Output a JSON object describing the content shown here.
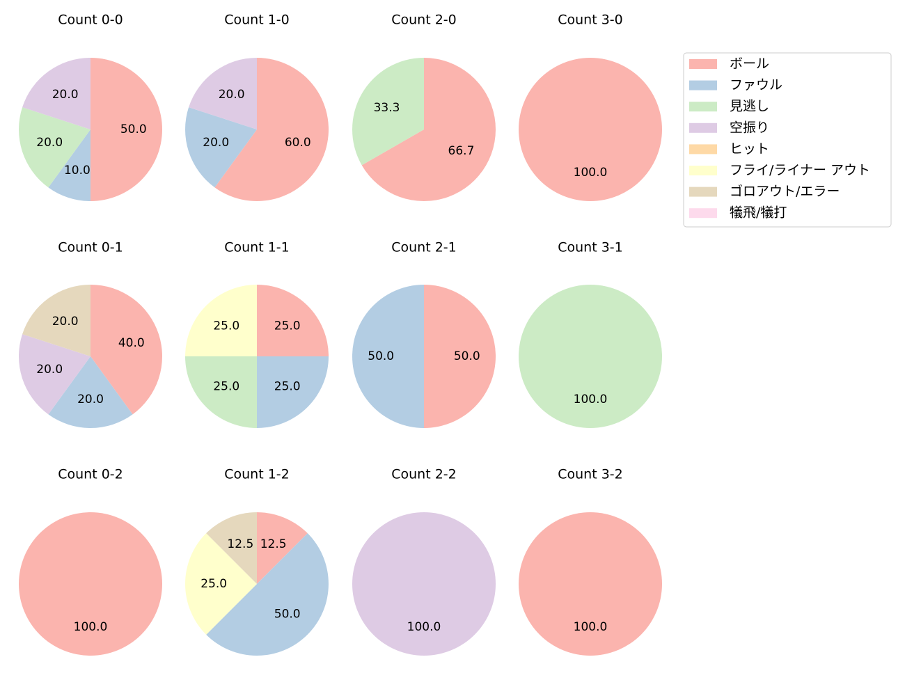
{
  "legend": {
    "entries": [
      {
        "name": "ボール",
        "color": "#fbb4ae"
      },
      {
        "name": "ファウル",
        "color": "#b3cde3"
      },
      {
        "name": "見逃し",
        "color": "#ccebc5"
      },
      {
        "name": "空振り",
        "color": "#decbe4"
      },
      {
        "name": "ヒット",
        "color": "#fed9a6"
      },
      {
        "name": "フライ/ライナー アウト",
        "color": "#ffffcc"
      },
      {
        "name": "ゴロアウト/エラー",
        "color": "#e5d8bd"
      },
      {
        "name": "犠飛/犠打",
        "color": "#fddaec"
      }
    ]
  },
  "chart_data": [
    {
      "type": "pie",
      "title": "Count 0-0",
      "categories": [
        "ボール",
        "ファウル",
        "見逃し",
        "空振り"
      ],
      "values": [
        50,
        10,
        20,
        20
      ],
      "value_labels": [
        "50.0",
        "10.0",
        "20.0",
        "20.0"
      ]
    },
    {
      "type": "pie",
      "title": "Count 1-0",
      "categories": [
        "ボール",
        "ファウル",
        "空振り"
      ],
      "values": [
        60,
        20,
        20
      ],
      "value_labels": [
        "60.0",
        "20.0",
        "20.0"
      ]
    },
    {
      "type": "pie",
      "title": "Count 2-0",
      "categories": [
        "ボール",
        "見逃し"
      ],
      "values": [
        66.7,
        33.3
      ]
    },
    {
      "type": "pie",
      "title": "Count 3-0",
      "categories": [
        "ボール"
      ],
      "values": [
        100
      ],
      "value_labels": [
        "100.0"
      ]
    },
    {
      "type": "pie",
      "title": "Count 0-1",
      "categories": [
        "ボール",
        "ファウル",
        "空振り",
        "ゴロアウト/エラー"
      ],
      "values": [
        40,
        20,
        20,
        20
      ],
      "value_labels": [
        "40.0",
        "20.0",
        "20.0",
        "20.0"
      ]
    },
    {
      "type": "pie",
      "title": "Count 1-1",
      "categories": [
        "ボール",
        "ファウル",
        "見逃し",
        "フライ/ライナー アウト"
      ],
      "values": [
        25,
        25,
        25,
        25
      ],
      "value_labels": [
        "25.0",
        "25.0",
        "25.0",
        "25.0"
      ]
    },
    {
      "type": "pie",
      "title": "Count 2-1",
      "categories": [
        "ボール",
        "ファウル"
      ],
      "values": [
        50,
        50
      ],
      "value_labels": [
        "50.0",
        "50.0"
      ]
    },
    {
      "type": "pie",
      "title": "Count 3-1",
      "categories": [
        "見逃し"
      ],
      "values": [
        100
      ],
      "value_labels": [
        "100.0"
      ]
    },
    {
      "type": "pie",
      "title": "Count 0-2",
      "categories": [
        "ボール"
      ],
      "values": [
        100
      ],
      "value_labels": [
        "100.0"
      ]
    },
    {
      "type": "pie",
      "title": "Count 1-2",
      "categories": [
        "ボール",
        "ファウル",
        "フライ/ライナー アウト",
        "ゴロアウト/エラー"
      ],
      "values": [
        12.5,
        50,
        25,
        12.5
      ],
      "value_labels": [
        "12.5",
        "50.0",
        "25.0",
        "12.5"
      ]
    },
    {
      "type": "pie",
      "title": "Count 2-2",
      "categories": [
        "空振り"
      ],
      "values": [
        100
      ],
      "value_labels": [
        "100.0"
      ]
    },
    {
      "type": "pie",
      "title": "Count 3-2",
      "categories": [
        "ボール"
      ],
      "values": [
        100
      ],
      "value_labels": [
        "100.0"
      ]
    }
  ]
}
